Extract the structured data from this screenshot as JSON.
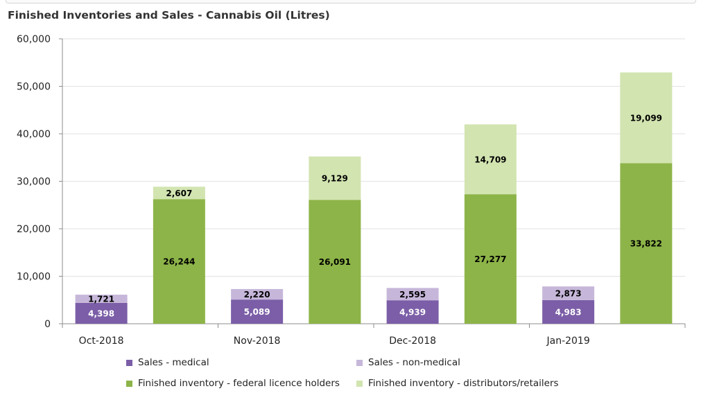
{
  "title": "Finished Inventories and Sales - Cannabis Oil (Litres)",
  "chart_data": {
    "type": "bar",
    "title": "Finished Inventories and Sales - Cannabis Oil (Litres)",
    "xlabel": "",
    "ylabel": "",
    "ylim": [
      0,
      60000
    ],
    "yticks": [
      0,
      10000,
      20000,
      30000,
      40000,
      50000,
      60000
    ],
    "ytick_labels": [
      "0",
      "10,000",
      "20,000",
      "30,000",
      "40,000",
      "50,000",
      "60,000"
    ],
    "categories": [
      "Oct-2018",
      "Nov-2018",
      "Dec-2018",
      "Jan-2019"
    ],
    "grid": true,
    "legend_position": "bottom",
    "groups": [
      {
        "name": "Sales",
        "series": [
          {
            "name": "Sales - medical",
            "color": "#7b5ea7",
            "label_color": "#ffffff",
            "values": [
              4398,
              5089,
              4939,
              4983
            ],
            "labels": [
              "4,398",
              "5,089",
              "4,939",
              "4,983"
            ]
          },
          {
            "name": "Sales - non-medical",
            "color": "#c6b7da",
            "label_color": "#000000",
            "values": [
              1721,
              2220,
              2595,
              2873
            ],
            "labels": [
              "1,721",
              "2,220",
              "2,595",
              "2,873"
            ]
          }
        ]
      },
      {
        "name": "Finished inventory",
        "series": [
          {
            "name": "Finished inventory - federal licence holders",
            "color": "#8db448",
            "label_color": "#000000",
            "values": [
              26244,
              26091,
              27277,
              33822
            ],
            "labels": [
              "26,244",
              "26,091",
              "27,277",
              "33,822"
            ]
          },
          {
            "name": "Finished inventory - distributors/retailers",
            "color": "#d2e4b0",
            "label_color": "#000000",
            "values": [
              2607,
              9129,
              14709,
              19099
            ],
            "labels": [
              "2,607",
              "9,129",
              "14,709",
              "19,099"
            ]
          }
        ]
      }
    ]
  },
  "legend": [
    {
      "label": "Sales - medical",
      "color": "#7b5ea7"
    },
    {
      "label": "Sales - non-medical",
      "color": "#c6b7da"
    },
    {
      "label": "Finished inventory - federal licence holders",
      "color": "#8db448"
    },
    {
      "label": "Finished inventory - distributors/retailers",
      "color": "#d2e4b0"
    }
  ]
}
